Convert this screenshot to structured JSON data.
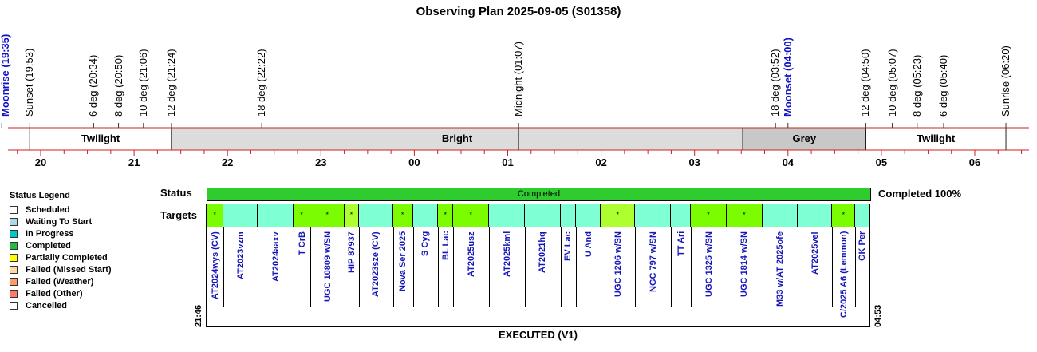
{
  "title": "Observing Plan 2025-09-05 (S01358)",
  "events": [
    {
      "label": "Moonrise (19:35)",
      "time": "19:35",
      "kind": "moon"
    },
    {
      "label": "Sunset (19:53)",
      "time": "19:53",
      "kind": "sun"
    },
    {
      "label": "6 deg (20:34)",
      "time": "20:34",
      "kind": "twilight"
    },
    {
      "label": "8 deg (20:50)",
      "time": "20:50",
      "kind": "twilight"
    },
    {
      "label": "10 deg (21:06)",
      "time": "21:06",
      "kind": "twilight"
    },
    {
      "label": "12 deg (21:24)",
      "time": "21:24",
      "kind": "twilight"
    },
    {
      "label": "18 deg (22:22)",
      "time": "22:22",
      "kind": "twilight"
    },
    {
      "label": "Midnight (01:07)",
      "time": "01:07",
      "kind": "midnight"
    },
    {
      "label": "18 deg (03:52)",
      "time": "03:52",
      "kind": "twilight"
    },
    {
      "label": "Moonset (04:00)",
      "time": "04:00",
      "kind": "moon"
    },
    {
      "label": "12 deg (04:50)",
      "time": "04:50",
      "kind": "twilight"
    },
    {
      "label": "10 deg (05:07)",
      "time": "05:07",
      "kind": "twilight"
    },
    {
      "label": "8 deg (05:23)",
      "time": "05:23",
      "kind": "twilight"
    },
    {
      "label": "6 deg (05:40)",
      "time": "05:40",
      "kind": "twilight"
    },
    {
      "label": "Sunrise (06:20)",
      "time": "06:20",
      "kind": "sun"
    }
  ],
  "bands": [
    {
      "label": "Twilight",
      "start": "19:53",
      "end": "21:24",
      "color": "#ffffff"
    },
    {
      "label": "Bright",
      "start": "21:24",
      "end": "03:31",
      "color": "#dcdcdc"
    },
    {
      "label": "Grey",
      "start": "03:31",
      "end": "04:50",
      "color": "#c8c8c8"
    },
    {
      "label": "Twilight",
      "start": "04:50",
      "end": "06:20",
      "color": "#ffffff"
    }
  ],
  "hours": [
    "20",
    "21",
    "22",
    "23",
    "00",
    "01",
    "02",
    "03",
    "04",
    "05",
    "06"
  ],
  "legend": {
    "title": "Status Legend",
    "items": [
      {
        "label": "Scheduled",
        "color": "#ffffff"
      },
      {
        "label": "Waiting To Start",
        "color": "#add8e6"
      },
      {
        "label": "In Progress",
        "color": "#00c8c8"
      },
      {
        "label": "Completed",
        "color": "#22bb44"
      },
      {
        "label": "Partially Completed",
        "color": "#ffff00"
      },
      {
        "label": "Failed (Missed Start)",
        "color": "#ffd8a8"
      },
      {
        "label": "Failed (Weather)",
        "color": "#ff9966"
      },
      {
        "label": "Failed (Other)",
        "color": "#ff7a6a"
      },
      {
        "label": "Cancelled",
        "color": "#ffffff"
      }
    ]
  },
  "status": {
    "row_label": "Status",
    "bar_text": "Completed",
    "completion_text": "Completed 100%",
    "color": "#2ecc2e"
  },
  "targets_label": "Targets",
  "start_time": "21:46",
  "end_time": "04:53",
  "targets": [
    {
      "name": "AT2024wys (CV)",
      "start": "21:46",
      "end": "21:57",
      "color": "#7cfc00",
      "mark": "*"
    },
    {
      "name": "AT2023vzm",
      "start": "21:57",
      "end": "22:19",
      "color": "#7fffd4",
      "mark": ""
    },
    {
      "name": "AT2024aaxv",
      "start": "22:19",
      "end": "22:42",
      "color": "#7fffd4",
      "mark": ""
    },
    {
      "name": "T CrB",
      "start": "22:42",
      "end": "22:53",
      "color": "#7cfc00",
      "mark": "*"
    },
    {
      "name": "UGC 10809 w/SN",
      "start": "22:53",
      "end": "23:15",
      "color": "#7cfc00",
      "mark": "*"
    },
    {
      "name": "HIP 87937",
      "start": "23:15",
      "end": "23:24",
      "color": "#adff2f",
      "mark": "*"
    },
    {
      "name": "AT2023sze (CV)",
      "start": "23:24",
      "end": "23:46",
      "color": "#7fffd4",
      "mark": ""
    },
    {
      "name": "Nova Ser 2025",
      "start": "23:46",
      "end": "23:59",
      "color": "#7cfc00",
      "mark": "*"
    },
    {
      "name": "S Cyg",
      "start": "23:59",
      "end": "00:15",
      "color": "#7fffd4",
      "mark": ""
    },
    {
      "name": "BL Lac",
      "start": "00:15",
      "end": "00:25",
      "color": "#7cfc00",
      "mark": "*"
    },
    {
      "name": "AT2025usz",
      "start": "00:25",
      "end": "00:48",
      "color": "#7cfc00",
      "mark": "*"
    },
    {
      "name": "AT2025kml",
      "start": "00:48",
      "end": "01:11",
      "color": "#7fffd4",
      "mark": ""
    },
    {
      "name": "AT2021hq",
      "start": "01:11",
      "end": "01:34",
      "color": "#7fffd4",
      "mark": ""
    },
    {
      "name": "EV Lac",
      "start": "01:34",
      "end": "01:44",
      "color": "#7fffd4",
      "mark": ""
    },
    {
      "name": "U And",
      "start": "01:44",
      "end": "02:00",
      "color": "#7fffd4",
      "mark": ""
    },
    {
      "name": "UGC 1206 w/SN",
      "start": "02:00",
      "end": "02:22",
      "color": "#adff2f",
      "mark": "*"
    },
    {
      "name": "NGC 797 w/SN",
      "start": "02:22",
      "end": "02:45",
      "color": "#7fffd4",
      "mark": ""
    },
    {
      "name": "TT Ari",
      "start": "02:45",
      "end": "02:58",
      "color": "#7fffd4",
      "mark": ""
    },
    {
      "name": "UGC 1325 w/SN",
      "start": "02:58",
      "end": "03:21",
      "color": "#7cfc00",
      "mark": "*"
    },
    {
      "name": "UGC 1814 w/SN",
      "start": "03:21",
      "end": "03:44",
      "color": "#7cfc00",
      "mark": "*"
    },
    {
      "name": "M33 w/AT 2025ofe",
      "start": "03:44",
      "end": "04:07",
      "color": "#7fffd4",
      "mark": ""
    },
    {
      "name": "AT2025vel",
      "start": "04:07",
      "end": "04:29",
      "color": "#7fffd4",
      "mark": ""
    },
    {
      "name": "C/2025 A6 (Lemmon)",
      "start": "04:29",
      "end": "04:44",
      "color": "#7cfc00",
      "mark": "*"
    },
    {
      "name": "GK Per",
      "start": "04:44",
      "end": "04:53",
      "color": "#7fffd4",
      "mark": ""
    }
  ],
  "footer": "EXECUTED (V1)"
}
